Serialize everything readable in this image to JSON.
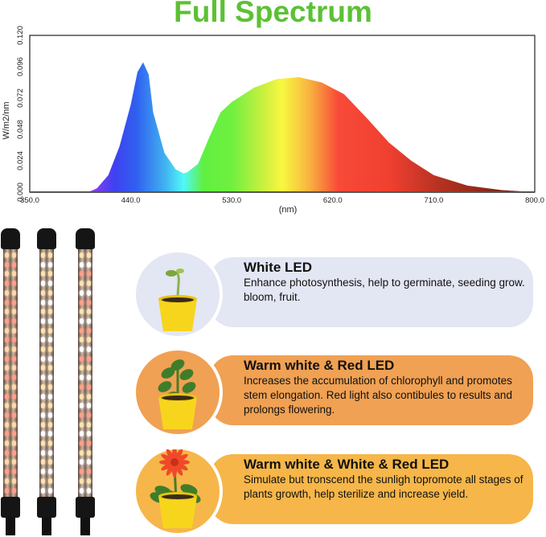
{
  "title": "Full Spectrum",
  "colors": {
    "title": "#5cc134",
    "card1": "#e3e6f3",
    "card2": "#f0a153",
    "card3": "#f6b649",
    "pot": "#f7d51d"
  },
  "chart_data": {
    "type": "area",
    "title": "Full Spectrum",
    "xlabel": "(nm)",
    "ylabel": "W/m2/nm",
    "xlim": [
      350,
      800
    ],
    "ylim": [
      0,
      0.12
    ],
    "xticks": [
      "350.0",
      "440.0",
      "530.0",
      "620.0",
      "710.0",
      "800.0"
    ],
    "yticks": [
      "0.000",
      "0.024",
      "0.048",
      "0.072",
      "0.096",
      "0.120"
    ],
    "fill": "wavelength color gradient",
    "grid": false,
    "x": [
      350,
      400,
      405,
      410,
      420,
      430,
      440,
      446,
      451,
      456,
      460,
      470,
      480,
      487,
      490,
      500,
      510,
      520,
      530,
      550,
      570,
      590,
      610,
      630,
      650,
      670,
      690,
      710,
      740,
      770,
      800
    ],
    "y": [
      0,
      0,
      0.001,
      0.003,
      0.013,
      0.035,
      0.067,
      0.092,
      0.0994,
      0.09,
      0.061,
      0.03,
      0.0175,
      0.0144,
      0.015,
      0.0216,
      0.042,
      0.061,
      0.069,
      0.08,
      0.0865,
      0.088,
      0.084,
      0.075,
      0.057,
      0.038,
      0.024,
      0.013,
      0.005,
      0.0016,
      0
    ]
  },
  "lamps": [
    {
      "name": "warm-red"
    },
    {
      "name": "white-warm"
    },
    {
      "name": "white-warm-red"
    }
  ],
  "cards": [
    {
      "title": "White LED",
      "body": "Enhance photosynthesis, help to germinate, seeding grow. bloom, fruit.",
      "plant": "seedling"
    },
    {
      "title": "Warm white & Red LED",
      "body": "Increases the accumulation of chlorophyll and promotes stem elongation. Red light also contibules to results and prolongs flowering.",
      "plant": "leafy-plant"
    },
    {
      "title": "Warm white & White & Red LED",
      "body": "Simulate but tronscend the sunligh topromote all stages of plants growth, help sterilize and increase yield.",
      "plant": "flowering-plant"
    }
  ]
}
